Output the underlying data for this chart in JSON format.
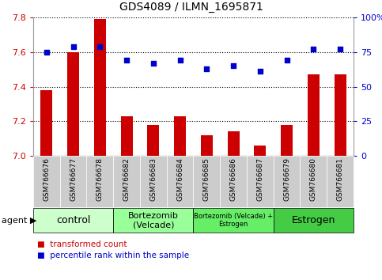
{
  "title": "GDS4089 / ILMN_1695871",
  "samples": [
    "GSM766676",
    "GSM766677",
    "GSM766678",
    "GSM766682",
    "GSM766683",
    "GSM766684",
    "GSM766685",
    "GSM766686",
    "GSM766687",
    "GSM766679",
    "GSM766680",
    "GSM766681"
  ],
  "bar_values": [
    7.38,
    7.6,
    7.79,
    7.23,
    7.18,
    7.23,
    7.12,
    7.14,
    7.06,
    7.18,
    7.47,
    7.47
  ],
  "scatter_values": [
    75,
    79,
    79,
    69,
    67,
    69,
    63,
    65,
    61,
    69,
    77,
    77
  ],
  "bar_color": "#cc0000",
  "scatter_color": "#0000cc",
  "ylim_left": [
    7.0,
    7.8
  ],
  "ylim_right": [
    0,
    100
  ],
  "yticks_left": [
    7.0,
    7.2,
    7.4,
    7.6,
    7.8
  ],
  "yticks_right": [
    0,
    25,
    50,
    75,
    100
  ],
  "ytick_labels_right": [
    "0",
    "25",
    "50",
    "75",
    "100%"
  ],
  "groups": [
    {
      "label": "control",
      "start": 0,
      "end": 3,
      "color": "#ccffcc",
      "fontsize": 9
    },
    {
      "label": "Bortezomib\n(Velcade)",
      "start": 3,
      "end": 6,
      "color": "#99ff99",
      "fontsize": 8
    },
    {
      "label": "Bortezomib (Velcade) +\nEstrogen",
      "start": 6,
      "end": 9,
      "color": "#66ee66",
      "fontsize": 6
    },
    {
      "label": "Estrogen",
      "start": 9,
      "end": 12,
      "color": "#44cc44",
      "fontsize": 9
    }
  ],
  "legend_bar_label": "transformed count",
  "legend_scatter_label": "percentile rank within the sample",
  "agent_label": "agent",
  "tick_area_color": "#cccccc",
  "bar_width": 0.45
}
